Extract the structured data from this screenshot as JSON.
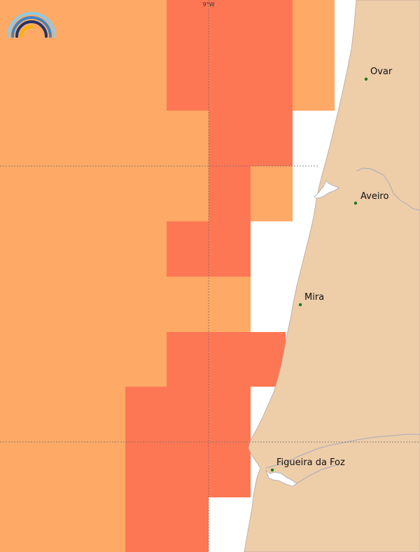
{
  "map": {
    "meridian_label": "9°W",
    "towns": [
      {
        "name": "Ovar",
        "marker_name": "town-marker-ovar"
      },
      {
        "name": "Aveiro",
        "marker_name": "town-marker-aveiro"
      },
      {
        "name": "Mira",
        "marker_name": "town-marker-mira"
      },
      {
        "name": "Figueira da Foz",
        "marker_name": "town-marker-figueira-da-foz"
      }
    ],
    "colors": {
      "ocean": "#ffffff",
      "zone_light": "#fea966",
      "zone_strong": "#fe7754",
      "land": "#eecda9",
      "coastline": "#a9a9bb",
      "graticule": "#666666",
      "town_marker": "#1a7a1a"
    },
    "logo_icon": "rainbow-arcs-icon"
  }
}
